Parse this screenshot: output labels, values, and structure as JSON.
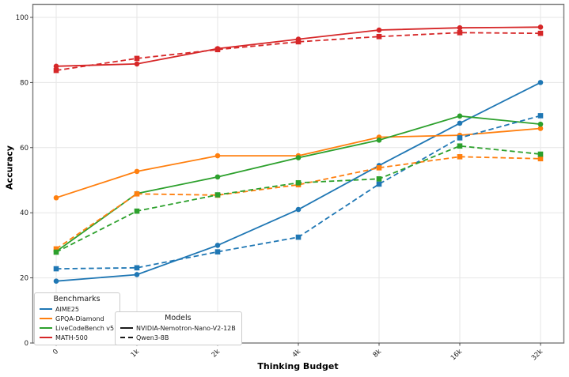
{
  "chart_data": {
    "type": "line",
    "title": "",
    "xlabel": "Thinking Budget",
    "ylabel": "Accuracy",
    "x_categories": [
      "0",
      "1k",
      "2k",
      "4k",
      "8k",
      "16k",
      "32k"
    ],
    "yticks": [
      0,
      20,
      40,
      60,
      80,
      100
    ],
    "ylim": [
      0,
      104
    ],
    "grid": true,
    "legend_position": "lower left",
    "colors": {
      "grid": "#e6e6e6",
      "spine": "#7a7a7a",
      "tick": "#3c3c3c",
      "text": "#1a1a1a",
      "blue": "#1f77b4",
      "orange": "#ff7f0e",
      "green": "#2ca02c",
      "red": "#d62728"
    },
    "legend_benchmarks": {
      "title": "Benchmarks",
      "items": [
        {
          "label": "AIME25",
          "color": "#1f77b4",
          "linestyle": "solid"
        },
        {
          "label": "GPQA-Diamond",
          "color": "#ff7f0e",
          "linestyle": "solid"
        },
        {
          "label": "LiveCodeBench v5",
          "color": "#2ca02c",
          "linestyle": "solid"
        },
        {
          "label": "MATH-500",
          "color": "#d62728",
          "linestyle": "solid"
        }
      ]
    },
    "legend_models": {
      "title": "Models",
      "items": [
        {
          "label": "NVIDIA-Nemotron-Nano-V2-12B",
          "color": "#1a1a1a",
          "linestyle": "solid"
        },
        {
          "label": "Qwen3-8B",
          "color": "#1a1a1a",
          "linestyle": "dashed"
        }
      ]
    },
    "series": [
      {
        "benchmark": "AIME25",
        "model": "NVIDIA-Nemotron-Nano-V2-12B",
        "color": "#1f77b4",
        "linestyle": "solid",
        "marker": "circle",
        "values": [
          19.0,
          21.0,
          30.0,
          41.0,
          54.5,
          67.5,
          80.0
        ]
      },
      {
        "benchmark": "GPQA-Diamond",
        "model": "NVIDIA-Nemotron-Nano-V2-12B",
        "color": "#ff7f0e",
        "linestyle": "solid",
        "marker": "circle",
        "values": [
          44.6,
          52.7,
          57.5,
          57.5,
          63.2,
          63.8,
          65.9
        ]
      },
      {
        "benchmark": "LiveCodeBench v5",
        "model": "NVIDIA-Nemotron-Nano-V2-12B",
        "color": "#2ca02c",
        "linestyle": "solid",
        "marker": "circle",
        "values": [
          28.1,
          45.9,
          51.0,
          56.9,
          62.3,
          69.7,
          67.2
        ]
      },
      {
        "benchmark": "MATH-500",
        "model": "NVIDIA-Nemotron-Nano-V2-12B",
        "color": "#d62728",
        "linestyle": "solid",
        "marker": "circle",
        "values": [
          85.0,
          85.7,
          90.4,
          93.3,
          96.1,
          96.8,
          97.0
        ]
      },
      {
        "benchmark": "AIME25",
        "model": "Qwen3-8B",
        "color": "#1f77b4",
        "linestyle": "dashed",
        "marker": "square",
        "values": [
          22.8,
          23.1,
          28.0,
          32.5,
          48.8,
          63.0,
          69.8
        ]
      },
      {
        "benchmark": "GPQA-Diamond",
        "model": "Qwen3-8B",
        "color": "#ff7f0e",
        "linestyle": "dashed",
        "marker": "square",
        "values": [
          28.9,
          45.8,
          45.4,
          48.6,
          53.8,
          57.2,
          56.6
        ]
      },
      {
        "benchmark": "LiveCodeBench v5",
        "model": "Qwen3-8B",
        "color": "#2ca02c",
        "linestyle": "dashed",
        "marker": "square",
        "values": [
          27.9,
          40.5,
          45.5,
          49.2,
          50.4,
          60.5,
          58.0
        ]
      },
      {
        "benchmark": "MATH-500",
        "model": "Qwen3-8B",
        "color": "#d62728",
        "linestyle": "dashed",
        "marker": "square",
        "values": [
          83.7,
          87.4,
          90.1,
          92.5,
          94.1,
          95.3,
          95.1
        ]
      }
    ]
  }
}
